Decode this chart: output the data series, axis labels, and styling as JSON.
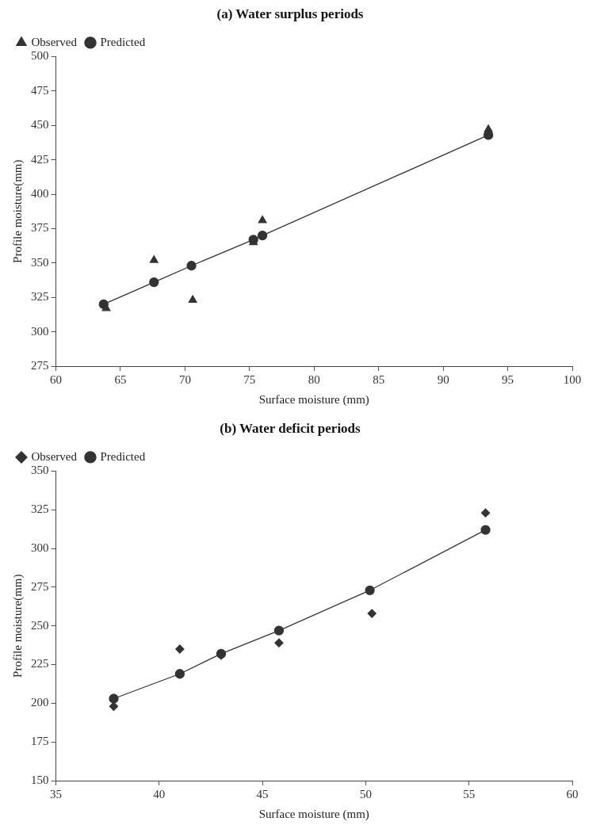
{
  "chart_data": [
    {
      "type": "scatter",
      "title": "(a) Water surplus periods",
      "xlabel": "Surface moisture (mm)",
      "ylabel": "Profile moisture(mm)",
      "xlim": [
        60,
        100
      ],
      "xticks": [
        60,
        65,
        70,
        75,
        80,
        85,
        90,
        95,
        100
      ],
      "ylim": [
        275,
        500
      ],
      "yticks": [
        275,
        300,
        325,
        350,
        375,
        400,
        425,
        450,
        475,
        500
      ],
      "grid": false,
      "legend": "top left",
      "series": [
        {
          "name": "Observed",
          "type": "scatter",
          "marker": "triangle",
          "color": "#333333",
          "x": [
            63.9,
            67.6,
            70.6,
            75.3,
            76,
            93.5
          ],
          "values": [
            317,
            352,
            323,
            365,
            381,
            447
          ]
        },
        {
          "name": "Predicted",
          "type": "line",
          "marker": "circle",
          "color": "#333333",
          "x": [
            63.7,
            67.6,
            70.5,
            75.3,
            76,
            93.5
          ],
          "values": [
            320,
            336,
            348,
            367,
            370,
            443
          ]
        }
      ]
    },
    {
      "type": "scatter",
      "title": "(b) Water deficit periods",
      "xlabel": "Surface moisture (mm)",
      "ylabel": "Profile moisture(mm)",
      "xlim": [
        35,
        60
      ],
      "xticks": [
        35,
        40,
        45,
        50,
        55,
        60
      ],
      "ylim": [
        150,
        350
      ],
      "yticks": [
        150,
        175,
        200,
        225,
        250,
        275,
        300,
        325,
        350
      ],
      "grid": false,
      "legend": "top left",
      "series": [
        {
          "name": "Observed",
          "type": "scatter",
          "marker": "diamond",
          "color": "#333333",
          "x": [
            37.8,
            41,
            43,
            45.8,
            50.3,
            55.8
          ],
          "values": [
            198,
            235,
            231,
            239,
            258,
            323
          ]
        },
        {
          "name": "Predicted",
          "type": "line",
          "marker": "circle",
          "color": "#333333",
          "x": [
            37.8,
            41,
            43,
            45.8,
            50.2,
            55.8
          ],
          "values": [
            203,
            219,
            232,
            247,
            273,
            312
          ]
        }
      ]
    }
  ]
}
